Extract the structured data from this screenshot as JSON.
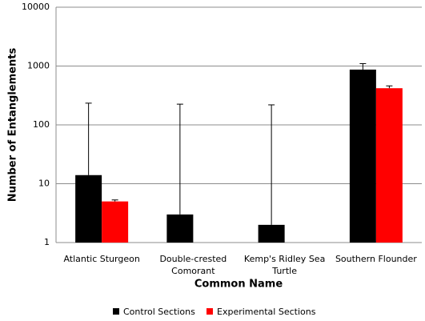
{
  "chart_data": {
    "type": "bar",
    "y_label": "Number of Entanglements",
    "x_label": "Common Name",
    "categories": [
      "Atlantic Sturgeon",
      "Double-crested Comorant",
      "Kemp's Ridley Sea Turtle",
      "Southern Flounder"
    ],
    "series": [
      {
        "name": "Control Sections",
        "color": "#000000",
        "values": [
          14,
          3,
          2,
          870
        ],
        "errors": [
          220,
          222,
          217,
          230
        ]
      },
      {
        "name": "Experimental Sections",
        "color": "#ff0000",
        "values": [
          5,
          null,
          null,
          420
        ],
        "errors": [
          0.3,
          null,
          null,
          40
        ]
      }
    ],
    "log_scale": true,
    "ylim": [
      1,
      10000
    ],
    "yticks": [
      1,
      10,
      100,
      1000,
      10000
    ],
    "grid": true,
    "legend": "bottom"
  }
}
